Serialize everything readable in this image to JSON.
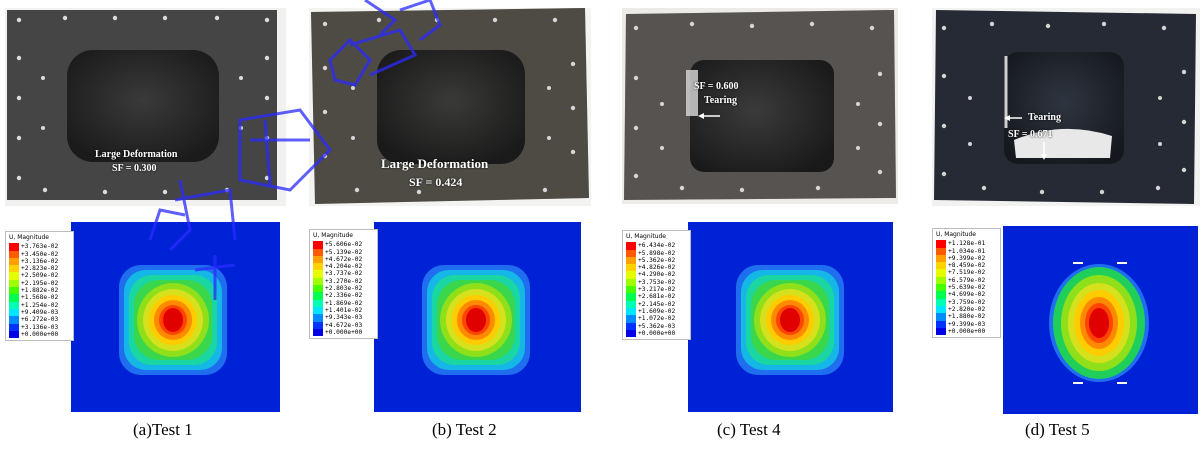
{
  "panels": [
    {
      "caption": "(a)Test 1",
      "photo_labels": [
        "Large Deformation",
        "SF = 0.300"
      ],
      "legend_title": "U, Magnitude",
      "legend_values": [
        "+3.763e-02",
        "+3.450e-02",
        "+3.136e-02",
        "+2.823e-02",
        "+2.509e-02",
        "+2.195e-02",
        "+1.882e-02",
        "+1.568e-02",
        "+1.254e-02",
        "+9.409e-03",
        "+6.272e-03",
        "+3.136e-03",
        "+0.000e+00"
      ]
    },
    {
      "caption": "(b) Test 2",
      "photo_labels": [
        "Large Deformation",
        "SF = 0.424"
      ],
      "legend_title": "U, Magnitude",
      "legend_values": [
        "+5.606e-02",
        "+5.139e-02",
        "+4.672e-02",
        "+4.204e-02",
        "+3.737e-02",
        "+3.270e-02",
        "+2.803e-02",
        "+2.336e-02",
        "+1.869e-02",
        "+1.401e-02",
        "+9.343e-03",
        "+4.672e-03",
        "+0.000e+00"
      ]
    },
    {
      "caption": "(c) Test 4",
      "photo_labels": [
        "SF = 0.600",
        "Tearing"
      ],
      "legend_title": "U, Magnitude",
      "legend_values": [
        "+6.434e-02",
        "+5.898e-02",
        "+5.362e-02",
        "+4.826e-02",
        "+4.290e-02",
        "+3.753e-02",
        "+3.217e-02",
        "+2.681e-02",
        "+2.145e-02",
        "+1.609e-02",
        "+1.072e-02",
        "+5.362e-03",
        "+0.000e+00"
      ]
    },
    {
      "caption": "(d) Test 5",
      "photo_labels": [
        "Tearing",
        "SF = 0.671"
      ],
      "legend_title": "U, Magnitude",
      "legend_values": [
        "+1.128e-01",
        "+1.034e-01",
        "+9.399e-02",
        "+8.459e-02",
        "+7.519e-02",
        "+6.579e-02",
        "+5.639e-02",
        "+4.699e-02",
        "+3.759e-02",
        "+2.820e-02",
        "+1.880e-02",
        "+9.399e-03",
        "+0.000e+00"
      ]
    }
  ],
  "colors": {
    "contour_scale": [
      "#ff0000",
      "#ff5a00",
      "#ffa000",
      "#ffd200",
      "#e6ff00",
      "#a0ff00",
      "#46ff00",
      "#00ff50",
      "#00ffb4",
      "#00e6ff",
      "#008cff",
      "#0032ff",
      "#0000e6"
    ],
    "fea_background": "#0022d6",
    "watermark": "#2a2aff"
  }
}
